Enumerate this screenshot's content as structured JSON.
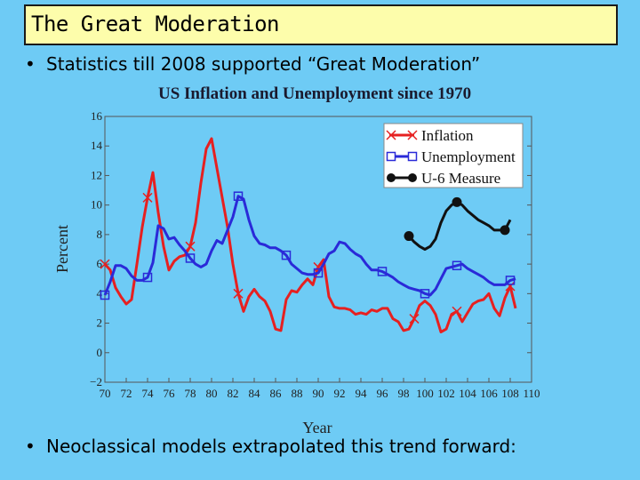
{
  "slide": {
    "title": "The Great Moderation",
    "bullet_symbol": "•",
    "bullets": [
      "Statistics till 2008 supported “Great Moderation”",
      "Neoclassical models extrapolated this trend forward:"
    ]
  },
  "colors": {
    "background": "#6ecbf5",
    "title_fill": "#fdfdab",
    "inflation": "#e62020",
    "unemployment": "#2a2ad8",
    "u6": "#111111"
  },
  "chart_data": {
    "type": "line",
    "title": "US Inflation and Unemployment since 1970",
    "xlabel": "Year",
    "ylabel": "Percent",
    "xlim": [
      70,
      110
    ],
    "ylim": [
      -2,
      16
    ],
    "x_ticks": [
      "70",
      "72",
      "74",
      "76",
      "78",
      "80",
      "82",
      "84",
      "86",
      "88",
      "90",
      "92",
      "94",
      "96",
      "98",
      "100",
      "102",
      "104",
      "106",
      "108",
      "110"
    ],
    "y_ticks": [
      "−2",
      "0",
      "2",
      "4",
      "6",
      "8",
      "10",
      "12",
      "14",
      "16"
    ],
    "legend": {
      "position": "top-right"
    },
    "series": [
      {
        "name": "Inflation",
        "marker": "x",
        "marker_x": [
          70,
          74,
          78,
          82.5,
          90,
          99,
          103,
          108
        ],
        "x": [
          70,
          70.5,
          71,
          71.5,
          72,
          72.5,
          73,
          73.5,
          74,
          74.5,
          75,
          75.5,
          76,
          76.5,
          77,
          77.5,
          78,
          78.5,
          79,
          79.5,
          80,
          80.5,
          81,
          81.5,
          82,
          82.5,
          83,
          83.5,
          84,
          84.5,
          85,
          85.5,
          86,
          86.5,
          87,
          87.5,
          88,
          88.5,
          89,
          89.5,
          90,
          90.5,
          91,
          91.5,
          92,
          92.5,
          93,
          93.5,
          94,
          94.5,
          95,
          95.5,
          96,
          96.5,
          97,
          97.5,
          98,
          98.5,
          99,
          99.5,
          100,
          100.5,
          101,
          101.5,
          102,
          102.5,
          103,
          103.5,
          104,
          104.5,
          105,
          105.5,
          106,
          106.5,
          107,
          107.5,
          108,
          108.5
        ],
        "values": [
          6.0,
          5.6,
          4.4,
          3.8,
          3.3,
          3.6,
          6.0,
          8.5,
          10.5,
          12.2,
          9.5,
          7.2,
          5.6,
          6.2,
          6.5,
          6.6,
          7.2,
          8.8,
          11.5,
          13.8,
          14.5,
          12.5,
          10.5,
          8.5,
          6.0,
          4.0,
          2.8,
          3.8,
          4.3,
          3.8,
          3.5,
          2.8,
          1.6,
          1.5,
          3.6,
          4.2,
          4.1,
          4.6,
          5.0,
          4.6,
          5.8,
          6.3,
          3.8,
          3.1,
          3.0,
          3.0,
          2.9,
          2.6,
          2.7,
          2.6,
          2.9,
          2.8,
          3.0,
          3.0,
          2.3,
          2.1,
          1.5,
          1.6,
          2.3,
          3.2,
          3.5,
          3.2,
          2.6,
          1.4,
          1.6,
          2.6,
          2.8,
          2.1,
          2.7,
          3.3,
          3.5,
          3.6,
          4.0,
          3.0,
          2.5,
          3.7,
          4.5,
          3.0
        ]
      },
      {
        "name": "Unemployment",
        "marker": "square",
        "marker_x": [
          70,
          74,
          78,
          82.5,
          87,
          90,
          96,
          100,
          103,
          108
        ],
        "x": [
          70,
          70.5,
          71,
          71.5,
          72,
          72.5,
          73,
          73.5,
          74,
          74.5,
          75,
          75.5,
          76,
          76.5,
          77,
          77.5,
          78,
          78.5,
          79,
          79.5,
          80,
          80.5,
          81,
          81.5,
          82,
          82.5,
          83,
          83.5,
          84,
          84.5,
          85,
          85.5,
          86,
          86.5,
          87,
          87.5,
          88,
          88.5,
          89,
          89.5,
          90,
          90.5,
          91,
          91.5,
          92,
          92.5,
          93,
          93.5,
          94,
          94.5,
          95,
          95.5,
          96,
          96.5,
          97,
          97.5,
          98,
          98.5,
          99,
          99.5,
          100,
          100.5,
          101,
          101.5,
          102,
          102.5,
          103,
          103.5,
          104,
          104.5,
          105,
          105.5,
          106,
          106.5,
          107,
          107.5,
          108,
          108.5
        ],
        "values": [
          3.9,
          4.8,
          5.9,
          5.9,
          5.7,
          5.2,
          4.9,
          4.9,
          5.1,
          6.1,
          8.6,
          8.4,
          7.7,
          7.8,
          7.3,
          6.9,
          6.4,
          6.0,
          5.8,
          6.0,
          6.9,
          7.6,
          7.4,
          8.3,
          9.2,
          10.6,
          10.4,
          9.0,
          7.9,
          7.4,
          7.3,
          7.1,
          7.1,
          6.9,
          6.6,
          6.0,
          5.7,
          5.4,
          5.3,
          5.3,
          5.4,
          6.0,
          6.7,
          6.9,
          7.5,
          7.4,
          7.0,
          6.7,
          6.5,
          6.0,
          5.6,
          5.6,
          5.5,
          5.3,
          5.1,
          4.8,
          4.6,
          4.4,
          4.3,
          4.2,
          4.0,
          3.9,
          4.3,
          5.0,
          5.7,
          5.8,
          5.9,
          6.0,
          5.7,
          5.5,
          5.3,
          5.1,
          4.8,
          4.6,
          4.6,
          4.6,
          4.9,
          5.0
        ]
      },
      {
        "name": "U-6 Measure",
        "marker": "circle",
        "marker_x": [
          98.5,
          103,
          107.5
        ],
        "x": [
          98.5,
          99,
          99.5,
          100,
          100.5,
          101,
          101.5,
          102,
          102.5,
          103,
          103.5,
          104,
          104.5,
          105,
          105.5,
          106,
          106.5,
          107,
          107.5,
          108
        ],
        "values": [
          7.9,
          7.5,
          7.2,
          7.0,
          7.2,
          7.7,
          8.8,
          9.6,
          10.0,
          10.2,
          10.0,
          9.6,
          9.3,
          9.0,
          8.8,
          8.6,
          8.3,
          8.3,
          8.3,
          9.0
        ]
      }
    ]
  }
}
